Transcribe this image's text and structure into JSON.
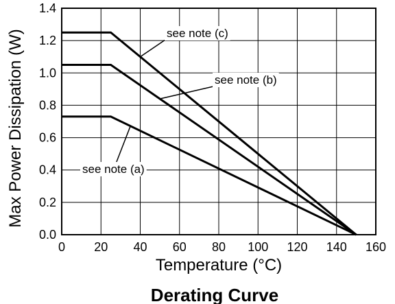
{
  "chart_data": {
    "type": "line",
    "title": "Derating Curve",
    "xlabel": "Temperature (°C)",
    "ylabel": "Max Power Dissipation (W)",
    "xlim": [
      0,
      160
    ],
    "ylim": [
      0,
      1.4
    ],
    "xticks": [
      "0",
      "20",
      "40",
      "60",
      "80",
      "100",
      "120",
      "140",
      "160"
    ],
    "yticks": [
      "0.0",
      "0.2",
      "0.4",
      "0.6",
      "0.8",
      "1.0",
      "1.2",
      "1.4"
    ],
    "grid": true,
    "series": [
      {
        "x": [
          0,
          25,
          150
        ],
        "y": [
          0.73,
          0.73,
          0
        ]
      },
      {
        "x": [
          0,
          25,
          150
        ],
        "y": [
          1.05,
          1.05,
          0
        ]
      },
      {
        "x": [
          0,
          25,
          150
        ],
        "y": [
          1.25,
          1.25,
          0
        ]
      }
    ],
    "annotations": [
      {
        "text": "see note (c)",
        "series": 2,
        "at_x": 40
      },
      {
        "text": "see note (b)",
        "series": 1,
        "at_x": 50
      },
      {
        "text": "see note (a)",
        "series": 0,
        "at_x": 35
      }
    ]
  }
}
